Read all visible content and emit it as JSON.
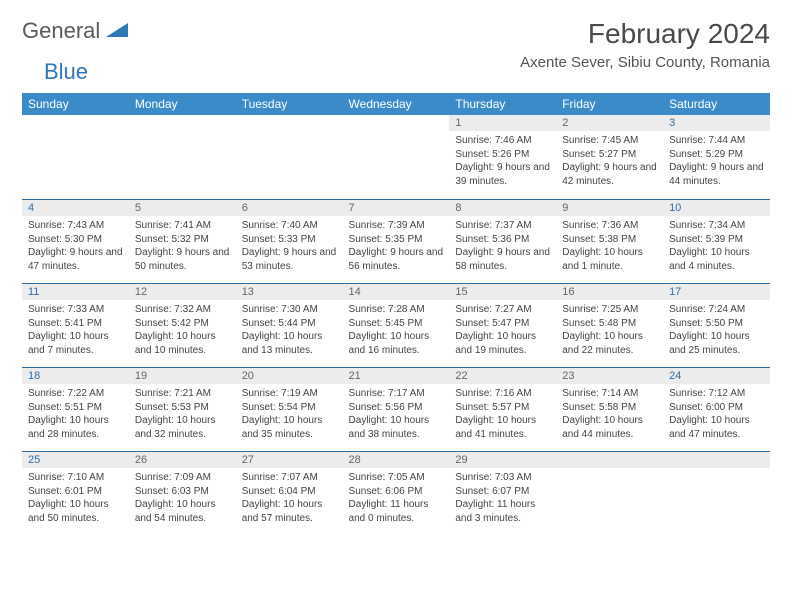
{
  "brand": {
    "name_a": "General",
    "name_b": "Blue"
  },
  "title": "February 2024",
  "location": "Axente Sever, Sibiu County, Romania",
  "colors": {
    "header_bg": "#3b8bc9",
    "header_text": "#ffffff",
    "daynum_bg": "#ececec",
    "rule": "#2e6da8",
    "brand_blue": "#2e77b8",
    "text": "#444444"
  },
  "weekdays": [
    "Sunday",
    "Monday",
    "Tuesday",
    "Wednesday",
    "Thursday",
    "Friday",
    "Saturday"
  ],
  "first_weekday_index": 4,
  "days": [
    {
      "n": 1,
      "sunrise": "7:46 AM",
      "sunset": "5:26 PM",
      "daylight": "9 hours and 39 minutes."
    },
    {
      "n": 2,
      "sunrise": "7:45 AM",
      "sunset": "5:27 PM",
      "daylight": "9 hours and 42 minutes."
    },
    {
      "n": 3,
      "sunrise": "7:44 AM",
      "sunset": "5:29 PM",
      "daylight": "9 hours and 44 minutes."
    },
    {
      "n": 4,
      "sunrise": "7:43 AM",
      "sunset": "5:30 PM",
      "daylight": "9 hours and 47 minutes."
    },
    {
      "n": 5,
      "sunrise": "7:41 AM",
      "sunset": "5:32 PM",
      "daylight": "9 hours and 50 minutes."
    },
    {
      "n": 6,
      "sunrise": "7:40 AM",
      "sunset": "5:33 PM",
      "daylight": "9 hours and 53 minutes."
    },
    {
      "n": 7,
      "sunrise": "7:39 AM",
      "sunset": "5:35 PM",
      "daylight": "9 hours and 56 minutes."
    },
    {
      "n": 8,
      "sunrise": "7:37 AM",
      "sunset": "5:36 PM",
      "daylight": "9 hours and 58 minutes."
    },
    {
      "n": 9,
      "sunrise": "7:36 AM",
      "sunset": "5:38 PM",
      "daylight": "10 hours and 1 minute."
    },
    {
      "n": 10,
      "sunrise": "7:34 AM",
      "sunset": "5:39 PM",
      "daylight": "10 hours and 4 minutes."
    },
    {
      "n": 11,
      "sunrise": "7:33 AM",
      "sunset": "5:41 PM",
      "daylight": "10 hours and 7 minutes."
    },
    {
      "n": 12,
      "sunrise": "7:32 AM",
      "sunset": "5:42 PM",
      "daylight": "10 hours and 10 minutes."
    },
    {
      "n": 13,
      "sunrise": "7:30 AM",
      "sunset": "5:44 PM",
      "daylight": "10 hours and 13 minutes."
    },
    {
      "n": 14,
      "sunrise": "7:28 AM",
      "sunset": "5:45 PM",
      "daylight": "10 hours and 16 minutes."
    },
    {
      "n": 15,
      "sunrise": "7:27 AM",
      "sunset": "5:47 PM",
      "daylight": "10 hours and 19 minutes."
    },
    {
      "n": 16,
      "sunrise": "7:25 AM",
      "sunset": "5:48 PM",
      "daylight": "10 hours and 22 minutes."
    },
    {
      "n": 17,
      "sunrise": "7:24 AM",
      "sunset": "5:50 PM",
      "daylight": "10 hours and 25 minutes."
    },
    {
      "n": 18,
      "sunrise": "7:22 AM",
      "sunset": "5:51 PM",
      "daylight": "10 hours and 28 minutes."
    },
    {
      "n": 19,
      "sunrise": "7:21 AM",
      "sunset": "5:53 PM",
      "daylight": "10 hours and 32 minutes."
    },
    {
      "n": 20,
      "sunrise": "7:19 AM",
      "sunset": "5:54 PM",
      "daylight": "10 hours and 35 minutes."
    },
    {
      "n": 21,
      "sunrise": "7:17 AM",
      "sunset": "5:56 PM",
      "daylight": "10 hours and 38 minutes."
    },
    {
      "n": 22,
      "sunrise": "7:16 AM",
      "sunset": "5:57 PM",
      "daylight": "10 hours and 41 minutes."
    },
    {
      "n": 23,
      "sunrise": "7:14 AM",
      "sunset": "5:58 PM",
      "daylight": "10 hours and 44 minutes."
    },
    {
      "n": 24,
      "sunrise": "7:12 AM",
      "sunset": "6:00 PM",
      "daylight": "10 hours and 47 minutes."
    },
    {
      "n": 25,
      "sunrise": "7:10 AM",
      "sunset": "6:01 PM",
      "daylight": "10 hours and 50 minutes."
    },
    {
      "n": 26,
      "sunrise": "7:09 AM",
      "sunset": "6:03 PM",
      "daylight": "10 hours and 54 minutes."
    },
    {
      "n": 27,
      "sunrise": "7:07 AM",
      "sunset": "6:04 PM",
      "daylight": "10 hours and 57 minutes."
    },
    {
      "n": 28,
      "sunrise": "7:05 AM",
      "sunset": "6:06 PM",
      "daylight": "11 hours and 0 minutes."
    },
    {
      "n": 29,
      "sunrise": "7:03 AM",
      "sunset": "6:07 PM",
      "daylight": "11 hours and 3 minutes."
    }
  ],
  "labels": {
    "sunrise": "Sunrise:",
    "sunset": "Sunset:",
    "daylight": "Daylight:"
  }
}
